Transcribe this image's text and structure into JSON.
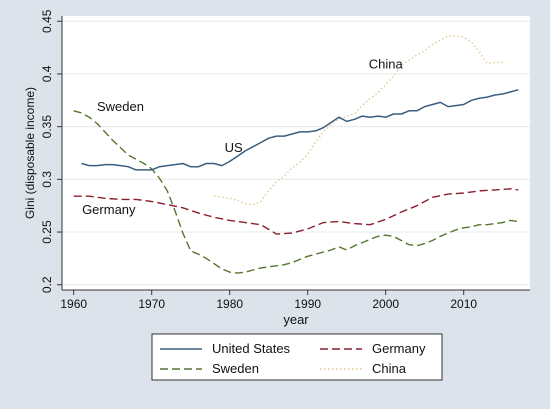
{
  "chart_data": {
    "type": "line",
    "xlabel": "year",
    "ylabel": "Gini (disposable income)",
    "xlim": [
      1958.5,
      2018.5
    ],
    "ylim": [
      0.195,
      0.455
    ],
    "x_ticks": [
      1960,
      1970,
      1980,
      1990,
      2000,
      2010
    ],
    "y_ticks": [
      0.2,
      0.25,
      0.3,
      0.35,
      0.4,
      0.45
    ],
    "y_tick_labels": [
      "0.2",
      "0.25",
      "0.3",
      "0.35",
      "0.4",
      "0.45"
    ],
    "grid": "horizontal",
    "legend_position": "bottom",
    "legend": [
      "United States",
      "Germany",
      "Sweden",
      "China"
    ],
    "annotations": [
      {
        "text": "Sweden",
        "x": 1966,
        "y": 0.365
      },
      {
        "text": "US",
        "x": 1980.5,
        "y": 0.326
      },
      {
        "text": "Germany",
        "x": 1964.5,
        "y": 0.267
      },
      {
        "text": "China",
        "x": 2000,
        "y": 0.405
      }
    ],
    "series": [
      {
        "name": "United States",
        "color": "#3b5e7f",
        "style": "solid",
        "x": [
          1961,
          1962,
          1963,
          1964,
          1965,
          1966,
          1967,
          1968,
          1969,
          1970,
          1971,
          1972,
          1973,
          1974,
          1975,
          1976,
          1977,
          1978,
          1979,
          1980,
          1981,
          1982,
          1983,
          1984,
          1985,
          1986,
          1987,
          1988,
          1989,
          1990,
          1991,
          1992,
          1993,
          1994,
          1995,
          1996,
          1997,
          1998,
          1999,
          2000,
          2001,
          2002,
          2003,
          2004,
          2005,
          2006,
          2007,
          2008,
          2009,
          2010,
          2011,
          2012,
          2013,
          2014,
          2015,
          2016,
          2017
        ],
        "y": [
          0.315,
          0.313,
          0.313,
          0.314,
          0.314,
          0.313,
          0.312,
          0.309,
          0.309,
          0.309,
          0.312,
          0.313,
          0.314,
          0.315,
          0.312,
          0.312,
          0.315,
          0.315,
          0.313,
          0.317,
          0.322,
          0.327,
          0.331,
          0.335,
          0.339,
          0.341,
          0.341,
          0.343,
          0.345,
          0.345,
          0.346,
          0.349,
          0.354,
          0.359,
          0.355,
          0.357,
          0.36,
          0.359,
          0.36,
          0.359,
          0.362,
          0.362,
          0.365,
          0.365,
          0.369,
          0.371,
          0.373,
          0.369,
          0.37,
          0.371,
          0.375,
          0.377,
          0.378,
          0.38,
          0.381,
          0.383,
          0.385
        ]
      },
      {
        "name": "Germany",
        "color": "#8b1f2e",
        "style": "dashed",
        "x": [
          1960,
          1962,
          1964,
          1966,
          1968,
          1970,
          1972,
          1974,
          1976,
          1978,
          1980,
          1982,
          1984,
          1986,
          1988,
          1990,
          1992,
          1994,
          1996,
          1998,
          2000,
          2002,
          2004,
          2006,
          2008,
          2010,
          2012,
          2014,
          2016,
          2017
        ],
        "y": [
          0.284,
          0.284,
          0.282,
          0.281,
          0.281,
          0.279,
          0.276,
          0.273,
          0.268,
          0.264,
          0.261,
          0.259,
          0.257,
          0.248,
          0.249,
          0.253,
          0.259,
          0.26,
          0.258,
          0.257,
          0.262,
          0.269,
          0.275,
          0.283,
          0.286,
          0.287,
          0.289,
          0.29,
          0.291,
          0.29
        ]
      },
      {
        "name": "Sweden",
        "color": "#55752e",
        "style": "dashed",
        "x": [
          1960,
          1961,
          1962,
          1963,
          1964,
          1965,
          1966,
          1967,
          1968,
          1969,
          1970,
          1971,
          1972,
          1973,
          1974,
          1975,
          1976,
          1977,
          1978,
          1979,
          1980,
          1981,
          1982,
          1983,
          1984,
          1985,
          1986,
          1987,
          1988,
          1989,
          1990,
          1991,
          1992,
          1993,
          1994,
          1995,
          1996,
          1997,
          1998,
          1999,
          2000,
          2001,
          2002,
          2003,
          2004,
          2005,
          2006,
          2007,
          2008,
          2009,
          2010,
          2011,
          2012,
          2013,
          2014,
          2015,
          2016,
          2017
        ],
        "y": [
          0.365,
          0.363,
          0.359,
          0.353,
          0.345,
          0.337,
          0.33,
          0.323,
          0.319,
          0.315,
          0.31,
          0.301,
          0.289,
          0.27,
          0.249,
          0.232,
          0.229,
          0.225,
          0.22,
          0.215,
          0.212,
          0.211,
          0.212,
          0.214,
          0.216,
          0.217,
          0.218,
          0.219,
          0.221,
          0.224,
          0.227,
          0.229,
          0.231,
          0.233,
          0.236,
          0.233,
          0.237,
          0.24,
          0.243,
          0.246,
          0.247,
          0.246,
          0.242,
          0.238,
          0.237,
          0.239,
          0.242,
          0.246,
          0.249,
          0.252,
          0.254,
          0.255,
          0.257,
          0.257,
          0.258,
          0.259,
          0.261,
          0.26
        ]
      },
      {
        "name": "China",
        "color": "#e0c890",
        "style": "dotted",
        "x": [
          1978,
          1980,
          1981,
          1982,
          1983,
          1984,
          1985,
          1986,
          1987,
          1988,
          1989,
          1990,
          1991,
          1992,
          1993,
          1994,
          1995,
          1996,
          1997,
          1998,
          1999,
          2000,
          2001,
          2002,
          2003,
          2004,
          2005,
          2006,
          2007,
          2008,
          2009,
          2010,
          2011,
          2012,
          2013,
          2014,
          2015
        ],
        "y": [
          0.284,
          0.282,
          0.28,
          0.277,
          0.276,
          0.279,
          0.289,
          0.298,
          0.303,
          0.311,
          0.316,
          0.324,
          0.335,
          0.345,
          0.352,
          0.357,
          0.36,
          0.362,
          0.37,
          0.377,
          0.382,
          0.39,
          0.398,
          0.408,
          0.413,
          0.418,
          0.422,
          0.428,
          0.432,
          0.436,
          0.436,
          0.435,
          0.43,
          0.421,
          0.41,
          0.411,
          0.411
        ]
      }
    ]
  }
}
